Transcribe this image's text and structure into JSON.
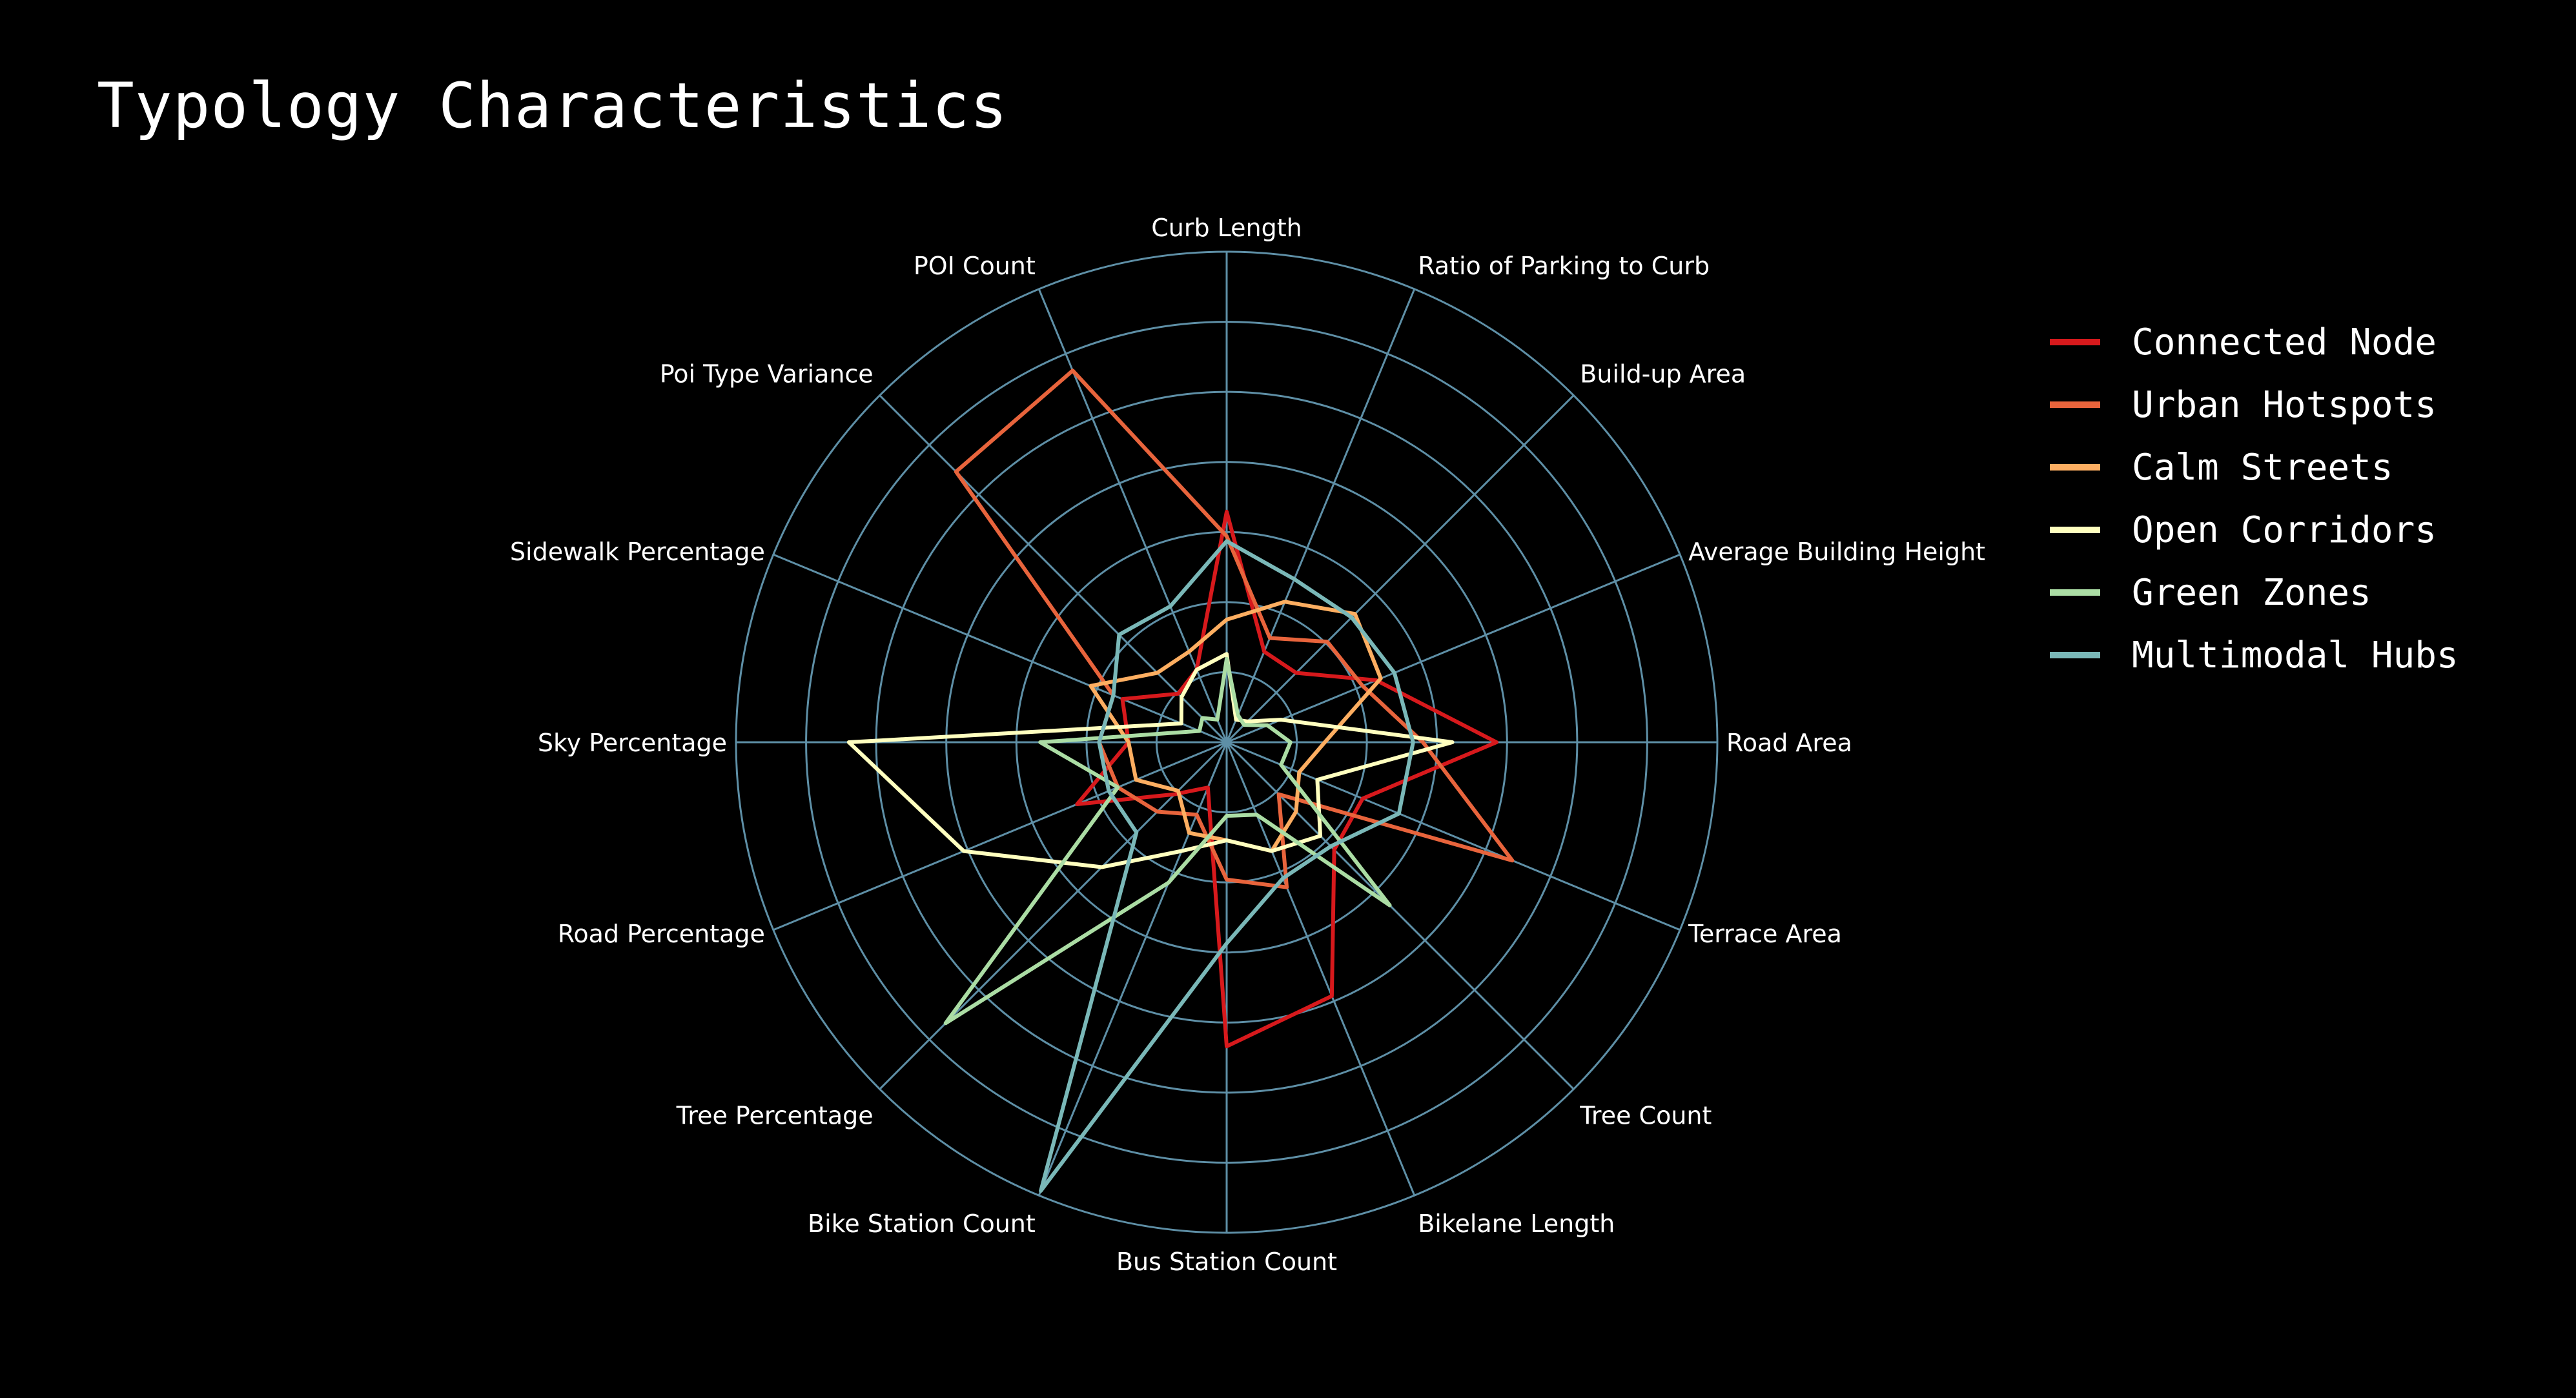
{
  "header": {
    "title": "Typology Characteristics"
  },
  "chart_data": {
    "type": "radar",
    "title": "Typology Characteristics",
    "axes": [
      "Curb Length",
      "Ratio of Parking to Curb",
      "Build-up Area",
      "Average Building Height",
      "Road Area",
      "Terrace Area",
      "Tree Count",
      "Bikelane Length",
      "Bus Station Count",
      "Bike Station Count",
      "Tree Percentage",
      "Road Percentage",
      "Sky Percentage",
      "Sidewalk Percentage",
      "Poi Type Variance",
      "POI Count"
    ],
    "radial_range": [
      0,
      1
    ],
    "grid": true,
    "legend_position": "right",
    "series": [
      {
        "name": "Connected Node",
        "color": "#d7191c",
        "values": [
          0.47,
          0.2,
          0.2,
          0.33,
          0.55,
          0.3,
          0.31,
          0.56,
          0.62,
          0.1,
          0.15,
          0.33,
          0.2,
          0.23,
          0.14,
          0.16
        ]
      },
      {
        "name": "Urban Hotspots",
        "color": "#e8643c",
        "values": [
          0.42,
          0.23,
          0.29,
          0.3,
          0.4,
          0.63,
          0.15,
          0.32,
          0.28,
          0.16,
          0.2,
          0.24,
          0.26,
          0.25,
          0.78,
          0.82
        ]
      },
      {
        "name": "Calm Streets",
        "color": "#fdae61",
        "values": [
          0.25,
          0.31,
          0.37,
          0.34,
          0.2,
          0.16,
          0.2,
          0.24,
          0.2,
          0.2,
          0.14,
          0.2,
          0.2,
          0.3,
          0.2,
          0.2
        ]
      },
      {
        "name": "Open Corridors",
        "color": "#ffffbf",
        "values": [
          0.18,
          0.05,
          0.06,
          0.12,
          0.46,
          0.2,
          0.27,
          0.24,
          0.2,
          0.24,
          0.36,
          0.58,
          0.77,
          0.1,
          0.13,
          0.16
        ]
      },
      {
        "name": "Green Zones",
        "color": "#abdda4",
        "values": [
          0.17,
          0.06,
          0.05,
          0.09,
          0.13,
          0.12,
          0.47,
          0.16,
          0.15,
          0.31,
          0.81,
          0.24,
          0.38,
          0.06,
          0.07,
          0.05
        ]
      },
      {
        "name": "Multimodal Hubs",
        "color": "#7ab8b8",
        "values": [
          0.41,
          0.36,
          0.36,
          0.37,
          0.38,
          0.38,
          0.3,
          0.3,
          0.41,
          0.99,
          0.26,
          0.26,
          0.26,
          0.25,
          0.31,
          0.3
        ]
      }
    ]
  }
}
